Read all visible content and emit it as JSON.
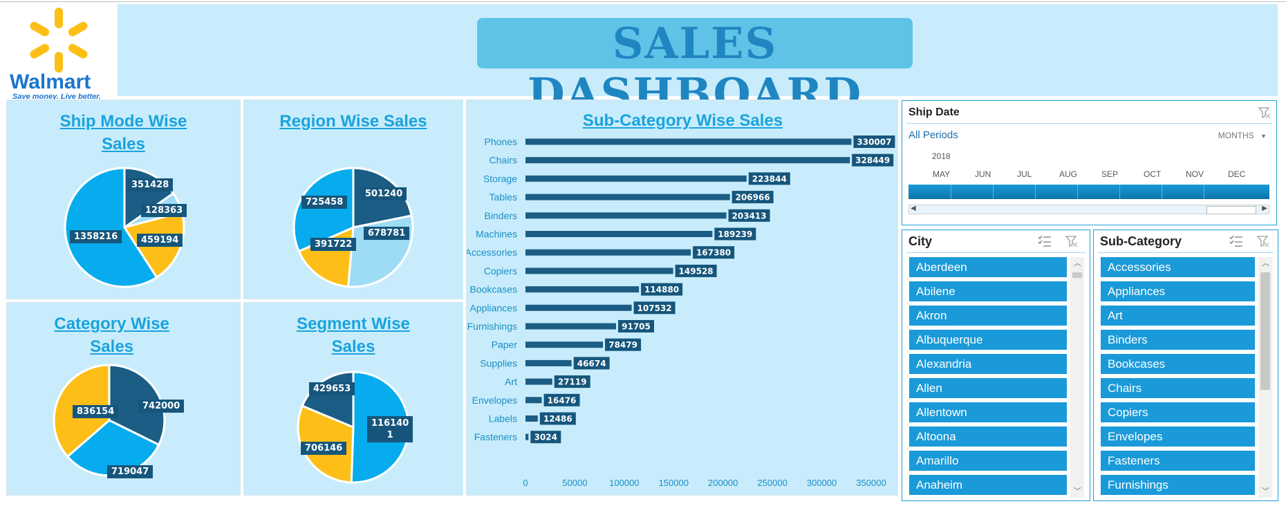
{
  "header": {
    "title": "SALES DASHBOARD",
    "logo_text": "Walmart",
    "logo_tagline": "Save money. Live better."
  },
  "charts": {
    "ship_mode": {
      "title_line1": "Ship Mode Wise",
      "title_line2": "Sales",
      "chart_data": {
        "type": "pie",
        "title": "Ship Mode Wise Sales",
        "values": [
          351428,
          128363,
          459194,
          1358216
        ],
        "labels": [
          "351428",
          "128363",
          "459194",
          "1358216"
        ],
        "colors": [
          "#1b5d84",
          "#9edcf5",
          "#fdbf17",
          "#06aced"
        ]
      }
    },
    "region": {
      "title": "Region Wise Sales",
      "chart_data": {
        "type": "pie",
        "title": "Region Wise Sales",
        "values": [
          501240,
          678781,
          391722,
          725458
        ],
        "labels": [
          "501240",
          "678781",
          "391722",
          "725458"
        ],
        "colors": [
          "#1b5d84",
          "#9edcf5",
          "#fdbf17",
          "#06aced"
        ]
      }
    },
    "category": {
      "title_line1": "Category Wise",
      "title_line2": "Sales",
      "chart_data": {
        "type": "pie",
        "title": "Category Wise Sales",
        "values": [
          742000,
          719047,
          836154
        ],
        "labels": [
          "742000",
          "719047",
          "836154"
        ],
        "colors": [
          "#1b5d84",
          "#06aced",
          "#fdbf17"
        ]
      }
    },
    "segment": {
      "title_line1": "Segment Wise",
      "title_line2": "Sales",
      "chart_data": {
        "type": "pie",
        "title": "Segment Wise Sales",
        "values": [
          1161401,
          706146,
          429653
        ],
        "labels": [
          "1161401",
          "706146",
          "429653"
        ],
        "label_lines": [
          [
            "116140",
            "1"
          ],
          [
            "706146"
          ],
          [
            "429653"
          ]
        ],
        "colors": [
          "#06aced",
          "#fdbf17",
          "#1b5d84"
        ]
      }
    },
    "sub_category": {
      "title": "Sub-Category Wise Sales",
      "chart_data": {
        "type": "bar",
        "orientation": "horizontal",
        "title": "Sub-Category Wise Sales",
        "categories": [
          "Phones",
          "Chairs",
          "Storage",
          "Tables",
          "Binders",
          "Machines",
          "Accessories",
          "Copiers",
          "Bookcases",
          "Appliances",
          "Furnishings",
          "Paper",
          "Supplies",
          "Art",
          "Envelopes",
          "Labels",
          "Fasteners"
        ],
        "values": [
          330007,
          328449,
          223844,
          206966,
          203413,
          189239,
          167380,
          149528,
          114880,
          107532,
          91705,
          78479,
          46674,
          27119,
          16476,
          12486,
          3024
        ],
        "xlim": [
          0,
          350000
        ],
        "xticks": [
          "0",
          "50000",
          "100000",
          "150000",
          "200000",
          "250000",
          "300000",
          "350000"
        ],
        "bar_color": "#1b5d84"
      }
    }
  },
  "timeline": {
    "title": "Ship Date",
    "period": "All Periods",
    "level": "MONTHS",
    "year": "2018",
    "months": [
      "MAY",
      "JUN",
      "JUL",
      "AUG",
      "SEP",
      "OCT",
      "NOV",
      "DEC"
    ]
  },
  "city_slicer": {
    "title": "City",
    "items": [
      "Aberdeen",
      "Abilene",
      "Akron",
      "Albuquerque",
      "Alexandria",
      "Allen",
      "Allentown",
      "Altoona",
      "Amarillo",
      "Anaheim"
    ]
  },
  "subcat_slicer": {
    "title": "Sub-Category",
    "items": [
      "Accessories",
      "Appliances",
      "Art",
      "Binders",
      "Bookcases",
      "Chairs",
      "Copiers",
      "Envelopes",
      "Fasteners",
      "Furnishings"
    ]
  }
}
